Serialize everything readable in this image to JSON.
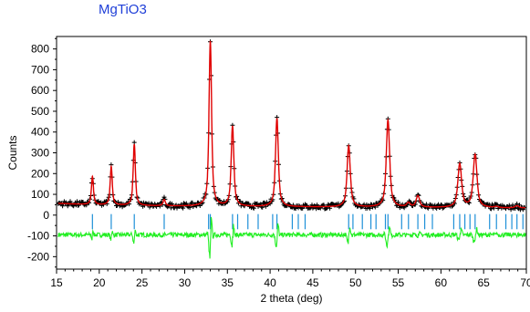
{
  "chart_data": {
    "type": "line",
    "title": "MgTiO3",
    "xlabel": "2 theta (deg)",
    "ylabel": "Counts",
    "xlim": [
      15,
      70
    ],
    "ylim": [
      -260,
      860
    ],
    "xticks": [
      15,
      20,
      25,
      30,
      35,
      40,
      45,
      50,
      55,
      60,
      65,
      70
    ],
    "yticks": [
      -200,
      -100,
      0,
      100,
      200,
      300,
      400,
      500,
      600,
      700,
      800
    ],
    "grid": false,
    "legend": "none",
    "colors": {
      "observed": "#000000",
      "calculated": "#e00000",
      "reflections": "#1e90d8",
      "difference": "#22ee22",
      "title": "#1f3fd8"
    },
    "background_level": 45,
    "difference_offset": -95,
    "peaks": [
      {
        "x": 19.2,
        "y": 180
      },
      {
        "x": 21.4,
        "y": 230
      },
      {
        "x": 24.1,
        "y": 340
      },
      {
        "x": 27.6,
        "y": 75
      },
      {
        "x": 33.0,
        "y": 840
      },
      {
        "x": 35.6,
        "y": 430
      },
      {
        "x": 40.8,
        "y": 470
      },
      {
        "x": 49.2,
        "y": 340
      },
      {
        "x": 53.8,
        "y": 465
      },
      {
        "x": 56.2,
        "y": 65
      },
      {
        "x": 57.3,
        "y": 100
      },
      {
        "x": 62.2,
        "y": 255
      },
      {
        "x": 64.0,
        "y": 300
      },
      {
        "x": 66.5,
        "y": 50
      },
      {
        "x": 68.9,
        "y": 55
      }
    ],
    "reflection_ticks": [
      19.2,
      21.4,
      24.1,
      27.6,
      32.8,
      33.0,
      35.6,
      36.2,
      37.4,
      38.6,
      40.3,
      40.8,
      42.6,
      43.3,
      44.1,
      49.2,
      49.7,
      50.8,
      51.8,
      52.4,
      53.5,
      53.8,
      55.4,
      56.2,
      57.3,
      58.1,
      59.0,
      61.5,
      62.2,
      62.8,
      63.4,
      64.0,
      65.7,
      66.5,
      67.6,
      68.3,
      68.9,
      69.6
    ]
  }
}
